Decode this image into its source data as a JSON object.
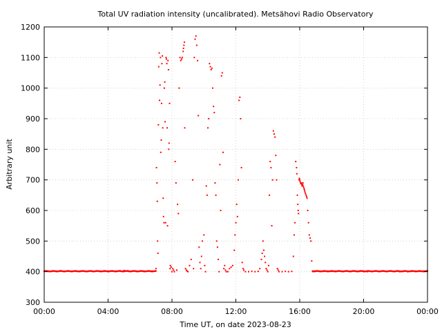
{
  "chart_data": {
    "type": "scatter",
    "title": "Total UV radiation intensity (uncalibrated). Metsähovi Radio Observatory",
    "xlabel": "Time UT, on date 2023-08-23",
    "ylabel": "Arbitrary unit",
    "xlim": [
      0,
      24
    ],
    "ylim": [
      300,
      1200
    ],
    "x_ticks": [
      0,
      4,
      8,
      12,
      16,
      20,
      24
    ],
    "x_tick_labels": [
      "00:00",
      "04:00",
      "08:00",
      "12:00",
      "16:00",
      "20:00",
      "00:00"
    ],
    "y_ticks": [
      300,
      400,
      500,
      600,
      700,
      800,
      900,
      1000,
      1100,
      1200
    ],
    "y_tick_labels": [
      "300",
      "400",
      "500",
      "600",
      "700",
      "800",
      "900",
      "1000",
      "1100",
      "1200"
    ],
    "grid": true,
    "marker_color": "#ff0000",
    "series": [
      {
        "points": [
          [
            0.0,
            402
          ],
          [
            0.25,
            402
          ],
          [
            0.5,
            401
          ],
          [
            0.75,
            402
          ],
          [
            1.0,
            403
          ],
          [
            1.25,
            401
          ],
          [
            1.5,
            402
          ],
          [
            1.75,
            402
          ],
          [
            2.0,
            401
          ],
          [
            2.25,
            402
          ],
          [
            2.5,
            402
          ],
          [
            2.75,
            401
          ],
          [
            3.0,
            402
          ],
          [
            3.25,
            402
          ],
          [
            3.5,
            402
          ],
          [
            3.75,
            401
          ],
          [
            4.0,
            402
          ],
          [
            4.25,
            402
          ],
          [
            4.5,
            402
          ],
          [
            4.75,
            403
          ],
          [
            5.0,
            404
          ],
          [
            5.25,
            403
          ],
          [
            5.5,
            402
          ],
          [
            5.75,
            402
          ],
          [
            6.0,
            402
          ],
          [
            6.25,
            402
          ],
          [
            6.5,
            402
          ],
          [
            6.75,
            402
          ],
          [
            7.0,
            410
          ],
          [
            7.03,
            740
          ],
          [
            7.06,
            690
          ],
          [
            7.08,
            630
          ],
          [
            7.1,
            500
          ],
          [
            7.12,
            460
          ],
          [
            7.15,
            880
          ],
          [
            7.17,
            1070
          ],
          [
            7.2,
            1115
          ],
          [
            7.22,
            960
          ],
          [
            7.25,
            1010
          ],
          [
            7.28,
            1100
          ],
          [
            7.3,
            790
          ],
          [
            7.33,
            830
          ],
          [
            7.35,
            950
          ],
          [
            7.37,
            1080
          ],
          [
            7.4,
            1105
          ],
          [
            7.42,
            870
          ],
          [
            7.45,
            640
          ],
          [
            7.47,
            580
          ],
          [
            7.5,
            560
          ],
          [
            7.52,
            1000
          ],
          [
            7.55,
            1020
          ],
          [
            7.57,
            890
          ],
          [
            7.6,
            560
          ],
          [
            7.63,
            1100
          ],
          [
            7.65,
            1095
          ],
          [
            7.68,
            1080
          ],
          [
            7.7,
            870
          ],
          [
            7.72,
            550
          ],
          [
            7.75,
            1090
          ],
          [
            7.78,
            1060
          ],
          [
            7.8,
            800
          ],
          [
            7.82,
            820
          ],
          [
            7.85,
            950
          ],
          [
            7.88,
            410
          ],
          [
            7.9,
            420
          ],
          [
            7.95,
            415
          ],
          [
            8.0,
            400
          ],
          [
            8.05,
            410
          ],
          [
            8.1,
            405
          ],
          [
            8.15,
            400
          ],
          [
            8.2,
            760
          ],
          [
            8.25,
            690
          ],
          [
            8.3,
            405
          ],
          [
            8.35,
            620
          ],
          [
            8.4,
            590
          ],
          [
            8.45,
            1000
          ],
          [
            8.5,
            1100
          ],
          [
            8.55,
            1090
          ],
          [
            8.6,
            1095
          ],
          [
            8.65,
            1100
          ],
          [
            8.7,
            1120
          ],
          [
            8.72,
            1130
          ],
          [
            8.75,
            1140
          ],
          [
            8.78,
            1150
          ],
          [
            8.8,
            870
          ],
          [
            8.85,
            410
          ],
          [
            8.9,
            405
          ],
          [
            8.95,
            402
          ],
          [
            9.0,
            400
          ],
          [
            9.1,
            420
          ],
          [
            9.2,
            440
          ],
          [
            9.3,
            700
          ],
          [
            9.35,
            410
          ],
          [
            9.4,
            1100
          ],
          [
            9.45,
            1160
          ],
          [
            9.5,
            1170
          ],
          [
            9.55,
            1140
          ],
          [
            9.6,
            1090
          ],
          [
            9.65,
            910
          ],
          [
            9.7,
            480
          ],
          [
            9.75,
            430
          ],
          [
            9.8,
            410
          ],
          [
            9.85,
            450
          ],
          [
            9.9,
            500
          ],
          [
            10.0,
            520
          ],
          [
            10.05,
            420
          ],
          [
            10.1,
            400
          ],
          [
            10.15,
            680
          ],
          [
            10.2,
            650
          ],
          [
            10.25,
            870
          ],
          [
            10.3,
            900
          ],
          [
            10.35,
            1080
          ],
          [
            10.4,
            1070
          ],
          [
            10.45,
            1060
          ],
          [
            10.5,
            1065
          ],
          [
            10.55,
            1000
          ],
          [
            10.6,
            940
          ],
          [
            10.65,
            920
          ],
          [
            10.7,
            690
          ],
          [
            10.75,
            650
          ],
          [
            10.8,
            500
          ],
          [
            10.85,
            480
          ],
          [
            10.9,
            440
          ],
          [
            10.95,
            400
          ],
          [
            11.0,
            750
          ],
          [
            11.05,
            600
          ],
          [
            11.1,
            1040
          ],
          [
            11.15,
            1050
          ],
          [
            11.2,
            790
          ],
          [
            11.25,
            410
          ],
          [
            11.3,
            420
          ],
          [
            11.35,
            405
          ],
          [
            11.4,
            400
          ],
          [
            11.5,
            400
          ],
          [
            11.6,
            410
          ],
          [
            11.7,
            415
          ],
          [
            11.8,
            420
          ],
          [
            11.9,
            470
          ],
          [
            11.95,
            520
          ],
          [
            12.0,
            560
          ],
          [
            12.05,
            620
          ],
          [
            12.1,
            580
          ],
          [
            12.15,
            700
          ],
          [
            12.2,
            960
          ],
          [
            12.25,
            970
          ],
          [
            12.3,
            900
          ],
          [
            12.35,
            740
          ],
          [
            12.4,
            430
          ],
          [
            12.45,
            410
          ],
          [
            12.5,
            405
          ],
          [
            12.6,
            400
          ],
          [
            12.8,
            400
          ],
          [
            13.0,
            401
          ],
          [
            13.2,
            400
          ],
          [
            13.4,
            401
          ],
          [
            13.5,
            410
          ],
          [
            13.6,
            440
          ],
          [
            13.65,
            460
          ],
          [
            13.7,
            500
          ],
          [
            13.75,
            470
          ],
          [
            13.8,
            450
          ],
          [
            13.85,
            430
          ],
          [
            13.9,
            410
          ],
          [
            13.95,
            405
          ],
          [
            14.0,
            400
          ],
          [
            14.05,
            420
          ],
          [
            14.1,
            650
          ],
          [
            14.15,
            760
          ],
          [
            14.2,
            740
          ],
          [
            14.25,
            550
          ],
          [
            14.3,
            700
          ],
          [
            14.35,
            860
          ],
          [
            14.4,
            850
          ],
          [
            14.45,
            840
          ],
          [
            14.5,
            780
          ],
          [
            14.55,
            700
          ],
          [
            14.6,
            410
          ],
          [
            14.65,
            405
          ],
          [
            14.7,
            400
          ],
          [
            14.9,
            400
          ],
          [
            15.1,
            401
          ],
          [
            15.3,
            400
          ],
          [
            15.5,
            401
          ],
          [
            15.6,
            450
          ],
          [
            15.65,
            520
          ],
          [
            15.7,
            560
          ],
          [
            15.75,
            760
          ],
          [
            15.8,
            740
          ],
          [
            15.82,
            720
          ],
          [
            15.85,
            650
          ],
          [
            15.88,
            620
          ],
          [
            15.9,
            600
          ],
          [
            15.92,
            590
          ],
          [
            15.95,
            700
          ],
          [
            15.98,
            705
          ],
          [
            16.0,
            700
          ],
          [
            16.02,
            695
          ],
          [
            16.05,
            690
          ],
          [
            16.08,
            688
          ],
          [
            16.1,
            690
          ],
          [
            16.12,
            685
          ],
          [
            16.15,
            680
          ],
          [
            16.18,
            685
          ],
          [
            16.2,
            690
          ],
          [
            16.22,
            680
          ],
          [
            16.25,
            675
          ],
          [
            16.28,
            670
          ],
          [
            16.3,
            665
          ],
          [
            16.33,
            660
          ],
          [
            16.36,
            655
          ],
          [
            16.4,
            650
          ],
          [
            16.43,
            645
          ],
          [
            16.46,
            640
          ],
          [
            16.5,
            600
          ],
          [
            16.55,
            560
          ],
          [
            16.6,
            520
          ],
          [
            16.65,
            510
          ],
          [
            16.7,
            500
          ],
          [
            16.75,
            435
          ],
          [
            16.8,
            402
          ],
          [
            16.85,
            401
          ],
          [
            16.9,
            402
          ],
          [
            17.0,
            401
          ],
          [
            17.25,
            402
          ],
          [
            17.5,
            401
          ],
          [
            17.75,
            402
          ],
          [
            18.0,
            401
          ],
          [
            18.25,
            402
          ],
          [
            18.5,
            402
          ],
          [
            18.75,
            401
          ],
          [
            19.0,
            402
          ],
          [
            19.25,
            401
          ],
          [
            19.5,
            402
          ],
          [
            19.75,
            401
          ],
          [
            20.0,
            402
          ],
          [
            20.25,
            400
          ],
          [
            20.5,
            401
          ],
          [
            20.75,
            402
          ],
          [
            21.0,
            401
          ],
          [
            21.25,
            402
          ],
          [
            21.5,
            401
          ],
          [
            21.75,
            402
          ],
          [
            22.0,
            401
          ],
          [
            22.25,
            400
          ],
          [
            22.5,
            401
          ],
          [
            22.75,
            400
          ],
          [
            23.0,
            401
          ],
          [
            23.25,
            402
          ],
          [
            23.5,
            401
          ],
          [
            23.75,
            402
          ],
          [
            24.0,
            402
          ]
        ]
      }
    ]
  }
}
